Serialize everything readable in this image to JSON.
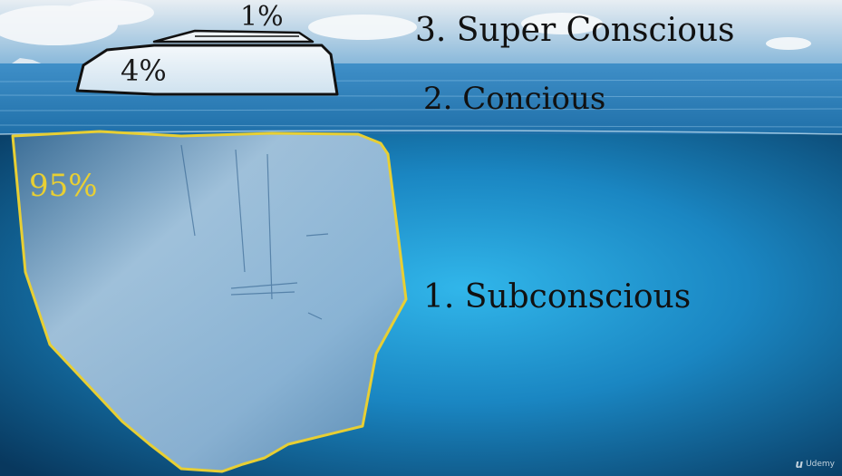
{
  "levels": {
    "super_conscious": "3. Super Conscious",
    "conscious": "2. Concious",
    "subconscious": "1. Subconscious"
  },
  "percentages": {
    "top": "1%",
    "above_water": "4%",
    "below_water": "95%"
  },
  "watermark": {
    "brand": "Udemy"
  },
  "colors": {
    "sky": "#9fc7e4",
    "sea_deep": "#0a3f66",
    "sea_glow": "#31b6ea",
    "highlight_outline": "#e8cf33",
    "label_text": "#111111"
  }
}
